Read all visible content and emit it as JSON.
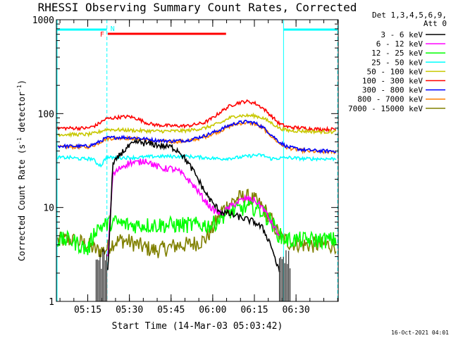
{
  "chart_data": {
    "type": "line",
    "title": "RHESSI Observing Summary Count Rates, Corrected",
    "xlabel": "Start Time (14-Mar-03 05:03:42)",
    "ylabel_main": "Corrected Count Rate (s",
    "ylabel_sup1": "-1",
    "ylabel_mid": " detector",
    "ylabel_sup2": "-1",
    "ylabel_end": ")",
    "yscale": "log",
    "ylim": [
      1,
      1000
    ],
    "xlim": [
      5.0617,
      6.7533
    ],
    "x_ticks": [
      {
        "t": 5.25,
        "label": "05:15"
      },
      {
        "t": 5.5,
        "label": "05:30"
      },
      {
        "t": 5.75,
        "label": "05:45"
      },
      {
        "t": 6.0,
        "label": "06:00"
      },
      {
        "t": 6.25,
        "label": "06:15"
      },
      {
        "t": 6.5,
        "label": "06:30"
      }
    ],
    "y_ticks": [
      {
        "v": 1,
        "label": "1"
      },
      {
        "v": 10,
        "label": "10"
      },
      {
        "v": 100,
        "label": "100"
      },
      {
        "v": 1000,
        "label": "1000"
      }
    ],
    "legend_header": [
      "Det 1,3,4,5,6,9,",
      "Att 0"
    ],
    "legend_placement": "right",
    "timestamp": "16-Oct-2021 04:01",
    "annotations": {
      "flare_flag": {
        "label": "F",
        "t_start": 5.37,
        "t_end": 6.08,
        "color": "#ff0000"
      },
      "night_flag": {
        "label": "N",
        "color": "#00ffff",
        "segments": [
          [
            5.0617,
            5.365
          ],
          [
            6.425,
            6.75
          ]
        ]
      },
      "night_boundaries": [
        5.365,
        6.425,
        6.75
      ]
    },
    "series": [
      {
        "name": "3 - 6 keV",
        "color": "#000000",
        "points": [
          [
            5.37,
            2.0
          ],
          [
            5.4,
            28
          ],
          [
            5.45,
            38
          ],
          [
            5.5,
            45
          ],
          [
            5.55,
            50
          ],
          [
            5.6,
            48
          ],
          [
            5.65,
            47
          ],
          [
            5.7,
            45
          ],
          [
            5.75,
            44
          ],
          [
            5.8,
            40
          ],
          [
            5.85,
            30
          ],
          [
            5.9,
            22
          ],
          [
            5.95,
            15
          ],
          [
            6.0,
            11
          ],
          [
            6.05,
            9
          ],
          [
            6.1,
            8.5
          ],
          [
            6.15,
            8
          ],
          [
            6.2,
            7.5
          ],
          [
            6.25,
            7
          ],
          [
            6.3,
            6
          ],
          [
            6.35,
            4
          ],
          [
            6.4,
            2
          ]
        ]
      },
      {
        "name": "6 - 12 keV",
        "color": "#ff00ff",
        "points": [
          [
            5.37,
            3
          ],
          [
            5.4,
            22
          ],
          [
            5.45,
            27
          ],
          [
            5.5,
            30
          ],
          [
            5.55,
            30
          ],
          [
            5.6,
            32
          ],
          [
            5.65,
            28
          ],
          [
            5.7,
            26
          ],
          [
            5.75,
            26
          ],
          [
            5.8,
            24
          ],
          [
            5.85,
            20
          ],
          [
            5.9,
            16
          ],
          [
            5.95,
            12
          ],
          [
            6.0,
            9.5
          ],
          [
            6.05,
            8.5
          ],
          [
            6.1,
            10
          ],
          [
            6.15,
            11.5
          ],
          [
            6.2,
            12.5
          ],
          [
            6.25,
            12
          ],
          [
            6.3,
            10
          ],
          [
            6.35,
            7
          ],
          [
            6.4,
            5
          ]
        ]
      },
      {
        "name": "12 - 25 keV",
        "color": "#00ff00",
        "points": [
          [
            5.07,
            4.5
          ],
          [
            5.15,
            4.5
          ],
          [
            5.2,
            4
          ],
          [
            5.25,
            3.5
          ],
          [
            5.3,
            6
          ],
          [
            5.4,
            7
          ],
          [
            5.5,
            6.5
          ],
          [
            5.6,
            6.5
          ],
          [
            5.7,
            6.5
          ],
          [
            5.8,
            6.5
          ],
          [
            5.9,
            6.5
          ],
          [
            6.0,
            6.5
          ],
          [
            6.05,
            8
          ],
          [
            6.1,
            9
          ],
          [
            6.15,
            9.5
          ],
          [
            6.2,
            10
          ],
          [
            6.25,
            10
          ],
          [
            6.3,
            9
          ],
          [
            6.35,
            7
          ],
          [
            6.4,
            5
          ],
          [
            6.45,
            4.5
          ],
          [
            6.55,
            4.5
          ],
          [
            6.65,
            4.5
          ],
          [
            6.74,
            4.5
          ]
        ]
      },
      {
        "name": "25 - 50 keV",
        "color": "#00ffff",
        "points": [
          [
            5.07,
            34
          ],
          [
            5.15,
            34
          ],
          [
            5.2,
            33
          ],
          [
            5.28,
            33
          ],
          [
            5.3,
            30
          ],
          [
            5.33,
            28
          ],
          [
            5.36,
            34
          ],
          [
            5.45,
            34
          ],
          [
            5.55,
            34
          ],
          [
            5.65,
            35
          ],
          [
            5.75,
            35
          ],
          [
            5.85,
            35
          ],
          [
            5.95,
            34
          ],
          [
            6.05,
            33
          ],
          [
            6.15,
            34
          ],
          [
            6.25,
            36
          ],
          [
            6.3,
            36
          ],
          [
            6.35,
            33
          ],
          [
            6.45,
            34
          ],
          [
            6.55,
            33
          ],
          [
            6.65,
            33
          ],
          [
            6.74,
            33
          ]
        ]
      },
      {
        "name": "50 - 100 keV",
        "color": "#c8c800",
        "points": [
          [
            5.07,
            60
          ],
          [
            5.15,
            60
          ],
          [
            5.25,
            60
          ],
          [
            5.3,
            62
          ],
          [
            5.36,
            68
          ],
          [
            5.45,
            67
          ],
          [
            5.55,
            66
          ],
          [
            5.65,
            65
          ],
          [
            5.75,
            65
          ],
          [
            5.85,
            66
          ],
          [
            5.95,
            70
          ],
          [
            6.05,
            80
          ],
          [
            6.1,
            90
          ],
          [
            6.15,
            95
          ],
          [
            6.2,
            95
          ],
          [
            6.25,
            95
          ],
          [
            6.3,
            90
          ],
          [
            6.35,
            80
          ],
          [
            6.4,
            70
          ],
          [
            6.45,
            66
          ],
          [
            6.55,
            65
          ],
          [
            6.65,
            64
          ],
          [
            6.74,
            64
          ]
        ]
      },
      {
        "name": "100 - 300 keV",
        "color": "#ff0000",
        "points": [
          [
            5.07,
            70
          ],
          [
            5.15,
            70
          ],
          [
            5.25,
            70
          ],
          [
            5.3,
            75
          ],
          [
            5.36,
            88
          ],
          [
            5.45,
            92
          ],
          [
            5.5,
            93
          ],
          [
            5.55,
            88
          ],
          [
            5.6,
            80
          ],
          [
            5.65,
            76
          ],
          [
            5.75,
            74
          ],
          [
            5.85,
            74
          ],
          [
            5.95,
            80
          ],
          [
            6.0,
            90
          ],
          [
            6.05,
            105
          ],
          [
            6.1,
            120
          ],
          [
            6.15,
            130
          ],
          [
            6.2,
            135
          ],
          [
            6.25,
            130
          ],
          [
            6.3,
            115
          ],
          [
            6.35,
            95
          ],
          [
            6.4,
            78
          ],
          [
            6.45,
            72
          ],
          [
            6.55,
            70
          ],
          [
            6.65,
            68
          ],
          [
            6.74,
            68
          ]
        ]
      },
      {
        "name": "300 - 800 keV",
        "color": "#0000ff",
        "points": [
          [
            5.07,
            45
          ],
          [
            5.15,
            45
          ],
          [
            5.25,
            45
          ],
          [
            5.3,
            48
          ],
          [
            5.36,
            55
          ],
          [
            5.45,
            56
          ],
          [
            5.55,
            55
          ],
          [
            5.65,
            52
          ],
          [
            5.75,
            51
          ],
          [
            5.85,
            52
          ],
          [
            5.95,
            58
          ],
          [
            6.05,
            68
          ],
          [
            6.1,
            75
          ],
          [
            6.15,
            80
          ],
          [
            6.2,
            82
          ],
          [
            6.25,
            80
          ],
          [
            6.3,
            72
          ],
          [
            6.35,
            60
          ],
          [
            6.4,
            50
          ],
          [
            6.45,
            44
          ],
          [
            6.55,
            41
          ],
          [
            6.65,
            40
          ],
          [
            6.74,
            40
          ]
        ]
      },
      {
        "name": "800 - 7000 keV",
        "color": "#ff8000",
        "points": [
          [
            5.07,
            44
          ],
          [
            5.15,
            44
          ],
          [
            5.25,
            44
          ],
          [
            5.3,
            47
          ],
          [
            5.36,
            54
          ],
          [
            5.45,
            55
          ],
          [
            5.55,
            54
          ],
          [
            5.65,
            51
          ],
          [
            5.75,
            50
          ],
          [
            5.85,
            51
          ],
          [
            5.95,
            56
          ],
          [
            6.05,
            66
          ],
          [
            6.1,
            73
          ],
          [
            6.15,
            78
          ],
          [
            6.2,
            80
          ],
          [
            6.25,
            78
          ],
          [
            6.3,
            70
          ],
          [
            6.35,
            58
          ],
          [
            6.4,
            48
          ],
          [
            6.45,
            43
          ],
          [
            6.55,
            40
          ],
          [
            6.65,
            39
          ],
          [
            6.74,
            39
          ]
        ]
      },
      {
        "name": "7000 - 15000 keV",
        "color": "#808000",
        "points": [
          [
            5.07,
            4.5
          ],
          [
            5.15,
            4.5
          ],
          [
            5.2,
            4.3
          ],
          [
            5.25,
            4.0
          ],
          [
            5.3,
            3.5
          ],
          [
            5.35,
            3.5
          ],
          [
            5.4,
            4.2
          ],
          [
            5.45,
            4.5
          ],
          [
            5.5,
            4.3
          ],
          [
            5.55,
            4.0
          ],
          [
            5.6,
            3.7
          ],
          [
            5.65,
            3.5
          ],
          [
            5.7,
            3.6
          ],
          [
            5.75,
            3.8
          ],
          [
            5.8,
            4.0
          ],
          [
            5.85,
            4.0
          ],
          [
            5.9,
            4.2
          ],
          [
            5.95,
            4.5
          ],
          [
            6.0,
            6
          ],
          [
            6.05,
            9
          ],
          [
            6.1,
            11
          ],
          [
            6.15,
            12.5
          ],
          [
            6.2,
            13
          ],
          [
            6.25,
            12
          ],
          [
            6.3,
            10
          ],
          [
            6.35,
            7.5
          ],
          [
            6.4,
            5
          ],
          [
            6.45,
            4.3
          ],
          [
            6.55,
            4.0
          ],
          [
            6.65,
            4.0
          ],
          [
            6.74,
            4.0
          ]
        ]
      }
    ]
  }
}
